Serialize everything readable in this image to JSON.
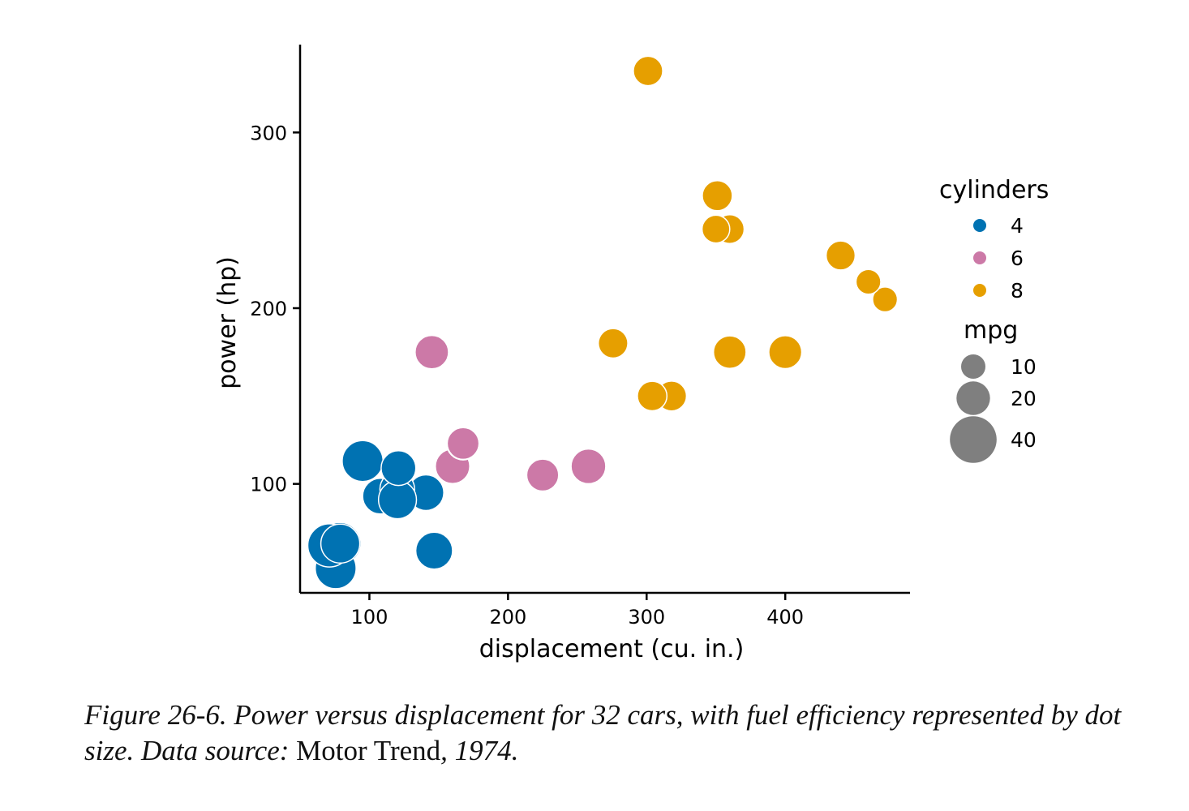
{
  "chart_data": {
    "type": "scatter",
    "xlabel": "displacement (cu. in.)",
    "ylabel": "power (hp)",
    "xlim": [
      50,
      490
    ],
    "ylim": [
      38,
      350
    ],
    "xticks": [
      100,
      200,
      300,
      400
    ],
    "yticks": [
      100,
      200,
      300
    ],
    "grid": false,
    "legend_position": "right",
    "colors": {
      "4": "#0072b2",
      "6": "#cc79a7",
      "8": "#e69f00"
    },
    "legend": {
      "color_title": "cylinders",
      "color_items": [
        {
          "label": "4",
          "key": "4"
        },
        {
          "label": "6",
          "key": "6"
        },
        {
          "label": "8",
          "key": "8"
        }
      ],
      "size_title": "mpg",
      "size_items": [
        {
          "label": "10",
          "mpg": 10
        },
        {
          "label": "20",
          "mpg": 20
        },
        {
          "label": "40",
          "mpg": 40
        }
      ]
    },
    "points": [
      {
        "x": 108,
        "y": 93,
        "mpg": 22.8,
        "cyl": "4"
      },
      {
        "x": 146.7,
        "y": 62,
        "mpg": 24.4,
        "cyl": "4"
      },
      {
        "x": 140.8,
        "y": 95,
        "mpg": 22.8,
        "cyl": "4"
      },
      {
        "x": 78.7,
        "y": 66,
        "mpg": 32.4,
        "cyl": "4"
      },
      {
        "x": 75.7,
        "y": 52,
        "mpg": 30.4,
        "cyl": "4"
      },
      {
        "x": 71.1,
        "y": 65,
        "mpg": 33.9,
        "cyl": "4"
      },
      {
        "x": 120.1,
        "y": 97,
        "mpg": 21.5,
        "cyl": "4"
      },
      {
        "x": 79,
        "y": 66,
        "mpg": 27.3,
        "cyl": "4"
      },
      {
        "x": 120.3,
        "y": 91,
        "mpg": 26.0,
        "cyl": "4"
      },
      {
        "x": 95.1,
        "y": 113,
        "mpg": 30.4,
        "cyl": "4"
      },
      {
        "x": 121,
        "y": 109,
        "mpg": 21.4,
        "cyl": "4"
      },
      {
        "x": 160,
        "y": 110,
        "mpg": 21.0,
        "cyl": "6"
      },
      {
        "x": 160,
        "y": 110,
        "mpg": 21.0,
        "cyl": "6"
      },
      {
        "x": 258,
        "y": 110,
        "mpg": 21.4,
        "cyl": "6"
      },
      {
        "x": 225,
        "y": 105,
        "mpg": 18.1,
        "cyl": "6"
      },
      {
        "x": 167.6,
        "y": 123,
        "mpg": 19.2,
        "cyl": "6"
      },
      {
        "x": 167.6,
        "y": 123,
        "mpg": 17.8,
        "cyl": "6"
      },
      {
        "x": 145,
        "y": 175,
        "mpg": 19.7,
        "cyl": "6"
      },
      {
        "x": 360,
        "y": 175,
        "mpg": 18.7,
        "cyl": "8"
      },
      {
        "x": 360,
        "y": 245,
        "mpg": 14.3,
        "cyl": "8"
      },
      {
        "x": 275.8,
        "y": 180,
        "mpg": 16.4,
        "cyl": "8"
      },
      {
        "x": 275.8,
        "y": 180,
        "mpg": 17.3,
        "cyl": "8"
      },
      {
        "x": 275.8,
        "y": 180,
        "mpg": 15.2,
        "cyl": "8"
      },
      {
        "x": 472,
        "y": 205,
        "mpg": 10.4,
        "cyl": "8"
      },
      {
        "x": 460,
        "y": 215,
        "mpg": 10.4,
        "cyl": "8"
      },
      {
        "x": 440,
        "y": 230,
        "mpg": 14.7,
        "cyl": "8"
      },
      {
        "x": 318,
        "y": 150,
        "mpg": 15.5,
        "cyl": "8"
      },
      {
        "x": 304,
        "y": 150,
        "mpg": 15.2,
        "cyl": "8"
      },
      {
        "x": 350,
        "y": 245,
        "mpg": 13.3,
        "cyl": "8"
      },
      {
        "x": 400,
        "y": 175,
        "mpg": 19.2,
        "cyl": "8"
      },
      {
        "x": 351,
        "y": 264,
        "mpg": 15.8,
        "cyl": "8"
      },
      {
        "x": 301,
        "y": 335,
        "mpg": 15.0,
        "cyl": "8"
      }
    ]
  },
  "caption": {
    "lead": "Figure 26-6. Power versus displacement for 32 cars, with fuel efficiency represented by dot size. Data source: ",
    "source": "Motor Trend",
    "tail": ", 1974."
  }
}
